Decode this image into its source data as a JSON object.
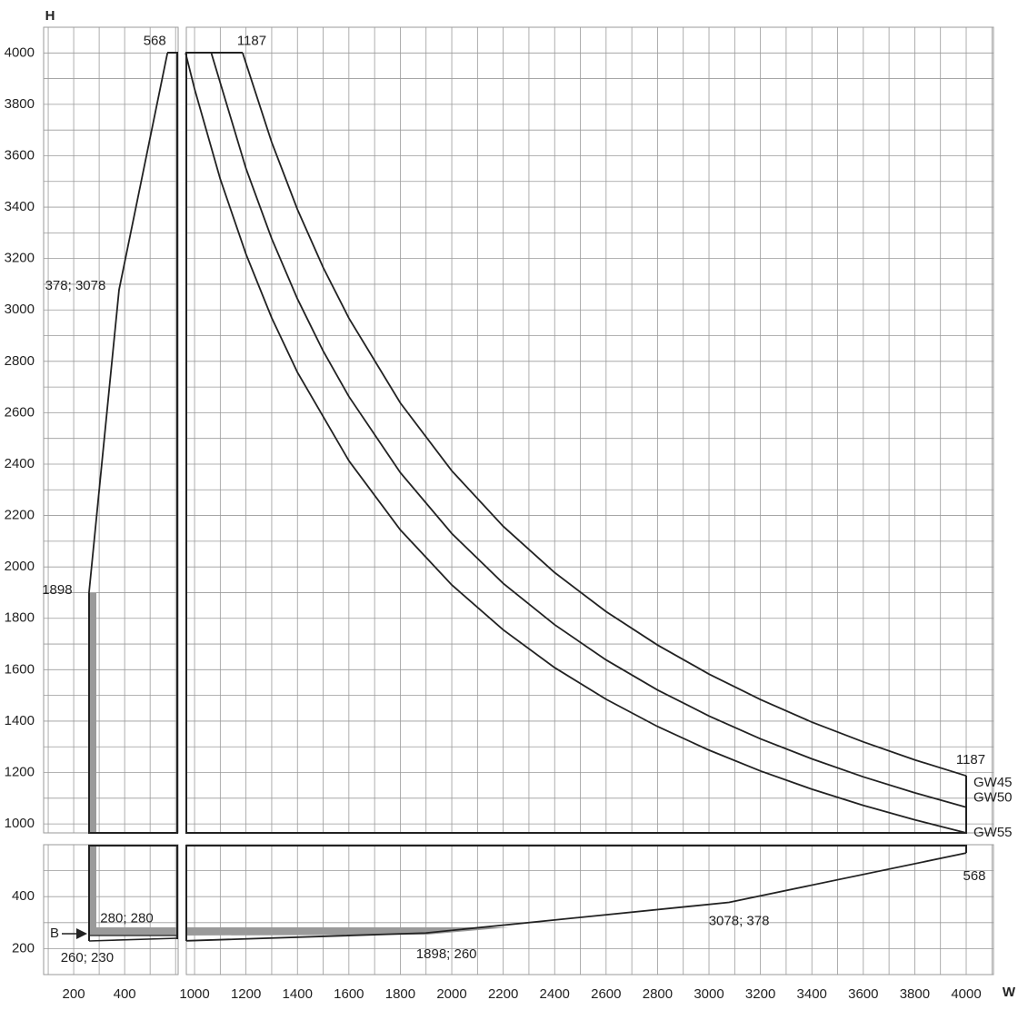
{
  "chart_data": {
    "type": "line",
    "y_label": "H",
    "x_label": "W",
    "xlim": [
      [
        82,
        610
      ],
      [
        968,
        4106
      ]
    ],
    "ylim": [
      [
        100,
        600
      ],
      [
        965,
        4100
      ]
    ],
    "grid": true,
    "grid_step": 100,
    "xticks": [
      200,
      400,
      1000,
      1200,
      1400,
      1600,
      1800,
      2000,
      2200,
      2400,
      2600,
      2800,
      3000,
      3200,
      3400,
      3600,
      3800,
      4000
    ],
    "yticks": [
      200,
      400,
      1000,
      1200,
      1400,
      1600,
      1800,
      2000,
      2200,
      2400,
      2600,
      2800,
      3000,
      3200,
      3400,
      3600,
      3800,
      4000
    ],
    "series": [
      {
        "name": "GW45",
        "color": "#222222",
        "x": [
          1187,
          1300,
          1400,
          1500,
          1600,
          1800,
          2000,
          2200,
          2400,
          2600,
          2800,
          3000,
          3200,
          3400,
          3600,
          3800,
          4000
        ],
        "values": [
          4000,
          3652,
          3391,
          3165,
          2968,
          2638,
          2374,
          2158,
          1978,
          1826,
          1696,
          1583,
          1484,
          1396,
          1319,
          1249,
          1187
        ]
      },
      {
        "name": "GW50",
        "color": "#222222",
        "x": [
          1065,
          1200,
          1300,
          1400,
          1500,
          1600,
          1800,
          2000,
          2200,
          2400,
          2600,
          2800,
          3000,
          3200,
          3400,
          3600,
          3800,
          4000
        ],
        "values": [
          4000,
          3550,
          3277,
          3043,
          2840,
          2663,
          2367,
          2130,
          1936,
          1775,
          1638,
          1521,
          1420,
          1331,
          1253,
          1183,
          1121,
          1065
        ]
      },
      {
        "name": "GW55",
        "color": "#222222",
        "x": [
          965,
          1000,
          1100,
          1200,
          1300,
          1400,
          1600,
          1800,
          2000,
          2200,
          2400,
          2600,
          2800,
          3000,
          3200,
          3400,
          3600,
          3800,
          4000
        ],
        "values": [
          4000,
          3860,
          3509,
          3217,
          2969,
          2757,
          2413,
          2144,
          1930,
          1755,
          1608,
          1485,
          1379,
          1287,
          1206,
          1135,
          1072,
          1016,
          965
        ]
      },
      {
        "color": "#222222",
        "x": [
          260,
          378,
          568
        ],
        "values": [
          1898,
          3078,
          4000
        ]
      },
      {
        "color": "#222222",
        "x": [
          968,
          1898,
          3078,
          4000
        ],
        "values": [
          230,
          260,
          378,
          568
        ]
      }
    ],
    "annotations": [
      {
        "text": "568",
        "x": 568,
        "y": 4000
      },
      {
        "text": "1187",
        "x": 1187,
        "y": 4000
      },
      {
        "text": "378; 3078",
        "x": 378,
        "y": 3078
      },
      {
        "text": "1898",
        "x": 260,
        "y": 1898
      },
      {
        "text": "1187",
        "x": 4000,
        "y": 1187
      },
      {
        "text": "568",
        "x": 4000,
        "y": 568
      },
      {
        "text": "3078; 378",
        "x": 3078,
        "y": 378
      },
      {
        "text": "1898; 260",
        "x": 1898,
        "y": 260
      },
      {
        "text": "280; 280",
        "x": 280,
        "y": 280
      },
      {
        "text": "260; 230",
        "x": 260,
        "y": 230
      }
    ],
    "marker_label": "B"
  }
}
